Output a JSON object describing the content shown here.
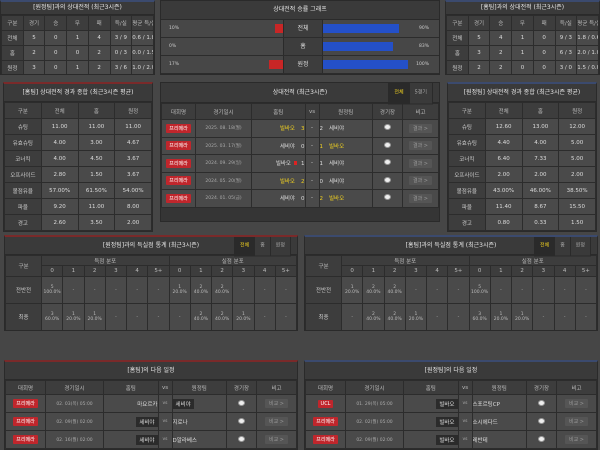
{
  "h2h_left": {
    "title": "[원정팀]과의 상대전적 (최근3시즌)",
    "headers": [
      "구분",
      "경기",
      "승",
      "무",
      "패",
      "득/실",
      "평균 득/실"
    ],
    "rows": [
      [
        "전체",
        "5",
        "0",
        "1",
        "4",
        "3 / 9",
        "0.6 / 1.8"
      ],
      [
        "홈",
        "2",
        "0",
        "0",
        "2",
        "0 / 3",
        "0.0 / 1.5"
      ],
      [
        "원정",
        "3",
        "0",
        "1",
        "2",
        "3 / 6",
        "1.0 / 2.0"
      ]
    ]
  },
  "h2h_right": {
    "title": "[홈팀]과의 상대전적 (최근3시즌)",
    "headers": [
      "구분",
      "경기",
      "승",
      "무",
      "패",
      "득/실",
      "평균 득/실"
    ],
    "rows": [
      [
        "전체",
        "5",
        "4",
        "1",
        "0",
        "9 / 3",
        "1.8 / 0.6"
      ],
      [
        "홈",
        "3",
        "2",
        "1",
        "0",
        "6 / 3",
        "2.0 / 1.0"
      ],
      [
        "원정",
        "2",
        "2",
        "0",
        "0",
        "3 / 0",
        "1.5 / 0.0"
      ]
    ]
  },
  "win_graph": {
    "title": "상대전적 승률 그래프",
    "colors": {
      "left": "#c82626",
      "right": "#2450c8"
    },
    "rows": [
      {
        "label": "전체",
        "left_text": "10%",
        "left_pct": 10,
        "right_text": "90%",
        "right_pct": 90
      },
      {
        "label": "홈",
        "left_text": "0%",
        "left_pct": 0,
        "right_text": "83%",
        "right_pct": 83
      },
      {
        "label": "원정",
        "left_text": "17%",
        "left_pct": 17,
        "right_text": "100%",
        "right_pct": 100
      }
    ]
  },
  "stats_left": {
    "title": "[홈팀] 상대전적 경과 종합 (최근3시즌 평균)",
    "headers": [
      "구분",
      "전체",
      "홈",
      "원정"
    ],
    "rows": [
      [
        "슈팅",
        "11.00",
        "11.00",
        "11.00"
      ],
      [
        "유효슈팅",
        "4.00",
        "3.00",
        "4.67"
      ],
      [
        "코너킥",
        "4.00",
        "4.50",
        "3.67"
      ],
      [
        "오프사이드",
        "2.80",
        "1.50",
        "3.67"
      ],
      [
        "볼점유율",
        "57.00%",
        "61.50%",
        "54.00%"
      ],
      [
        "파울",
        "9.20",
        "11.00",
        "8.00"
      ],
      [
        "경고",
        "2.60",
        "3.50",
        "2.00"
      ],
      [
        "퇴장",
        "0.00",
        "0.00",
        "0.00"
      ]
    ]
  },
  "stats_right": {
    "title": "[원정팀] 상대전적 경과 종합 (최근3시즌 평균)",
    "headers": [
      "구분",
      "전체",
      "홈",
      "원정"
    ],
    "rows": [
      [
        "슈팅",
        "12.60",
        "13.00",
        "12.00"
      ],
      [
        "유효슈팅",
        "4.40",
        "4.00",
        "5.00"
      ],
      [
        "코너킥",
        "6.40",
        "7.33",
        "5.00"
      ],
      [
        "오프사이드",
        "2.00",
        "2.00",
        "2.00"
      ],
      [
        "볼점유율",
        "43.00%",
        "46.00%",
        "38.50%"
      ],
      [
        "파울",
        "11.40",
        "8.67",
        "15.50"
      ],
      [
        "경고",
        "0.80",
        "0.33",
        "1.50"
      ],
      [
        "퇴장",
        "0.50",
        "1.00",
        "0.00"
      ]
    ]
  },
  "recent": {
    "title": "상대전적 (최근3시즌)",
    "tabs": [
      "전체",
      "5경기"
    ],
    "headers": [
      "대회명",
      "경기일시",
      "홈팀",
      "vs",
      "원정팀",
      "경기장",
      "비고"
    ],
    "matches": [
      {
        "league": "프리메라",
        "date": "2025. 08. 18(월)",
        "home": "빌바오",
        "hs": "3",
        "as": "2",
        "away": "세비야",
        "winner": "home",
        "result": "결과 >",
        "card": false
      },
      {
        "league": "프리메라",
        "date": "2025. 03. 17(월)",
        "home": "세비야",
        "hs": "0",
        "as": "1",
        "away": "빌바오",
        "winner": "away",
        "result": "결과 >",
        "card": false
      },
      {
        "league": "프리메라",
        "date": "2024. 09. 29(일)",
        "home": "빌바오",
        "hs": "1",
        "as": "1",
        "away": "세비야",
        "winner": "none",
        "result": "결과 >",
        "card": true
      },
      {
        "league": "프리메라",
        "date": "2024. 05. 20(월)",
        "home": "빌바오",
        "hs": "2",
        "as": "0",
        "away": "세비야",
        "winner": "home",
        "result": "결과 >",
        "card": false
      },
      {
        "league": "프리메라",
        "date": "2024. 01. 05(금)",
        "home": "세비야",
        "hs": "0",
        "as": "2",
        "away": "빌바오",
        "winner": "away",
        "result": "결과 >",
        "card": false
      }
    ]
  },
  "goals_left": {
    "title": "[원정팀]과의 득실점 통계 (최근3시즌)",
    "tabs": [
      "전체",
      "홈",
      "원정"
    ],
    "label": "구분",
    "groups": [
      "득점 분포",
      "실점 분포"
    ],
    "cols": [
      "0",
      "1",
      "2",
      "3",
      "4",
      "5+"
    ],
    "rows": [
      {
        "label": "전반전",
        "cells": [
          [
            "5",
            "100.0%"
          ],
          [
            "-",
            ""
          ],
          [
            "-",
            ""
          ],
          [
            "-",
            ""
          ],
          [
            "-",
            ""
          ],
          [
            "-",
            ""
          ],
          [
            "1",
            "20.0%"
          ],
          [
            "2",
            "40.0%"
          ],
          [
            "2",
            "40.0%"
          ],
          [
            "-",
            ""
          ],
          [
            "-",
            ""
          ],
          [
            "-",
            ""
          ]
        ]
      },
      {
        "label": "최종",
        "cells": [
          [
            "3",
            "60.0%"
          ],
          [
            "1",
            "20.0%"
          ],
          [
            "1",
            "20.0%"
          ],
          [
            "-",
            ""
          ],
          [
            "-",
            ""
          ],
          [
            "-",
            ""
          ],
          [
            "-",
            ""
          ],
          [
            "2",
            "40.0%"
          ],
          [
            "2",
            "40.0%"
          ],
          [
            "1",
            "20.0%"
          ],
          [
            "-",
            ""
          ],
          [
            "-",
            ""
          ]
        ]
      }
    ]
  },
  "goals_right": {
    "title": "[홈팀]과의 득실점 통계 (최근3시즌)",
    "tabs": [
      "전체",
      "홈",
      "원정"
    ],
    "label": "구분",
    "groups": [
      "득점 분포",
      "실점 분포"
    ],
    "cols": [
      "0",
      "1",
      "2",
      "3",
      "4",
      "5+"
    ],
    "rows": [
      {
        "label": "전반전",
        "cells": [
          [
            "1",
            "20.0%"
          ],
          [
            "2",
            "40.0%"
          ],
          [
            "2",
            "40.0%"
          ],
          [
            "-",
            ""
          ],
          [
            "-",
            ""
          ],
          [
            "-",
            ""
          ],
          [
            "5",
            "100.0%"
          ],
          [
            "-",
            ""
          ],
          [
            "-",
            ""
          ],
          [
            "-",
            ""
          ],
          [
            "-",
            ""
          ],
          [
            "-",
            ""
          ]
        ]
      },
      {
        "label": "최종",
        "cells": [
          [
            "-",
            ""
          ],
          [
            "2",
            "40.0%"
          ],
          [
            "2",
            "40.0%"
          ],
          [
            "1",
            "20.0%"
          ],
          [
            "-",
            ""
          ],
          [
            "-",
            ""
          ],
          [
            "3",
            "60.0%"
          ],
          [
            "1",
            "20.0%"
          ],
          [
            "1",
            "20.0%"
          ],
          [
            "-",
            ""
          ],
          [
            "-",
            ""
          ],
          [
            "-",
            ""
          ]
        ]
      }
    ]
  },
  "sched_left": {
    "title": "[홈팀]의 다음 일정",
    "headers": [
      "대회명",
      "경기일시",
      "홈팀",
      "vs",
      "원정팀",
      "경기장",
      "비고"
    ],
    "matches": [
      {
        "league": "프리메라",
        "date": "02. 03(목) 05:00",
        "home": "마요르카",
        "vs": "vs",
        "away": "세비야",
        "hl": "away",
        "btn": "비교 >"
      },
      {
        "league": "프리메라",
        "date": "02. 09(월) 02:00",
        "home": "세비야",
        "vs": "vs",
        "away": "지로나",
        "hl": "home",
        "btn": "비교 >"
      },
      {
        "league": "프리메라",
        "date": "02. 16(월) 02:00",
        "home": "세비야",
        "vs": "vs",
        "away": "D알라베스",
        "hl": "home",
        "btn": "비교 >"
      }
    ]
  },
  "sched_right": {
    "title": "[원정팀]의 다음 일정",
    "headers": [
      "대회명",
      "경기일시",
      "홈팀",
      "vs",
      "원정팀",
      "경기장",
      "비고"
    ],
    "matches": [
      {
        "league": "UCL",
        "date": "01. 29(목) 05:00",
        "home": "빌바오",
        "vs": "vs",
        "away": "스포르팅CP",
        "hl": "home",
        "btn": "비교 >"
      },
      {
        "league": "프리메라",
        "date": "02. 02(월) 05:00",
        "home": "빌바오",
        "vs": "vs",
        "away": "소시에다드",
        "hl": "home",
        "btn": "비교 >"
      },
      {
        "league": "프리메라",
        "date": "02. 09(월) 02:00",
        "home": "빌바오",
        "vs": "vs",
        "away": "레반테",
        "hl": "home",
        "btn": "비교 >"
      }
    ]
  }
}
